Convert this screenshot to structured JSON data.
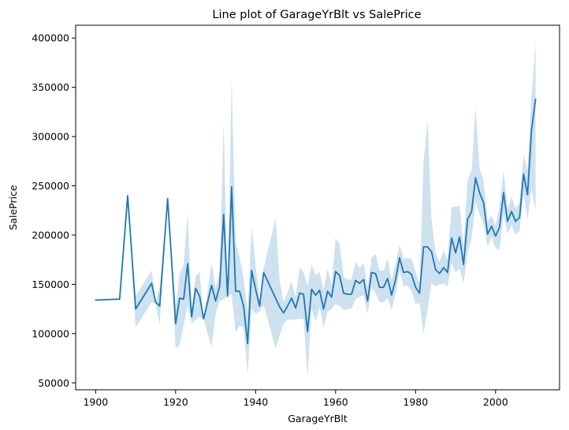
{
  "chart_data": {
    "type": "line",
    "title": "Line plot of GarageYrBlt vs SalePrice",
    "xlabel": "GarageYrBlt",
    "ylabel": "SalePrice",
    "xlim": [
      1895,
      2016
    ],
    "ylim": [
      43000,
      413000
    ],
    "xticks": [
      1900,
      1920,
      1940,
      1960,
      1980,
      2000
    ],
    "yticks": [
      50000,
      100000,
      150000,
      200000,
      250000,
      300000,
      350000,
      400000
    ],
    "grid": false,
    "legend": "none",
    "line_color": "#1f77b4",
    "band_color": "#1f77b4",
    "band_opacity": 0.22,
    "x": [
      1900,
      1906,
      1908,
      1910,
      1914,
      1915,
      1916,
      1918,
      1920,
      1921,
      1922,
      1923,
      1924,
      1925,
      1926,
      1927,
      1929,
      1930,
      1931,
      1932,
      1933,
      1934,
      1935,
      1936,
      1937,
      1938,
      1939,
      1940,
      1941,
      1942,
      1945,
      1946,
      1947,
      1948,
      1949,
      1950,
      1951,
      1952,
      1953,
      1954,
      1955,
      1956,
      1957,
      1958,
      1959,
      1960,
      1961,
      1962,
      1963,
      1964,
      1965,
      1966,
      1967,
      1968,
      1969,
      1970,
      1971,
      1972,
      1973,
      1974,
      1975,
      1976,
      1977,
      1978,
      1979,
      1980,
      1981,
      1982,
      1983,
      1984,
      1985,
      1986,
      1987,
      1988,
      1989,
      1990,
      1991,
      1992,
      1993,
      1994,
      1995,
      1996,
      1997,
      1998,
      1999,
      2000,
      2001,
      2002,
      2003,
      2004,
      2005,
      2006,
      2007,
      2008,
      2009,
      2010
    ],
    "y": [
      134000,
      135000,
      240000,
      125000,
      151000,
      132000,
      128000,
      237000,
      110000,
      136000,
      135000,
      171000,
      117000,
      146000,
      138000,
      115000,
      149000,
      133000,
      148000,
      221000,
      138000,
      249000,
      143000,
      143000,
      128000,
      90000,
      164000,
      145000,
      128000,
      162000,
      136000,
      127000,
      121000,
      128000,
      136000,
      126000,
      141000,
      140000,
      102000,
      145000,
      139000,
      144000,
      125000,
      143000,
      137000,
      163000,
      159000,
      141000,
      140000,
      140000,
      154000,
      151000,
      155000,
      133000,
      162000,
      161000,
      147000,
      147000,
      156000,
      139000,
      155000,
      177000,
      162000,
      163000,
      160000,
      147000,
      141000,
      188000,
      188000,
      183000,
      165000,
      161000,
      167000,
      162000,
      197000,
      182000,
      198000,
      170000,
      216000,
      224000,
      258000,
      243000,
      233000,
      201000,
      209000,
      199000,
      208000,
      243000,
      214000,
      224000,
      214000,
      218000,
      262000,
      241000,
      307000,
      338000
    ],
    "y_lower": [
      134000,
      135000,
      240000,
      106000,
      132000,
      130000,
      109000,
      237000,
      85000,
      88000,
      109000,
      129000,
      110000,
      114000,
      117000,
      114000,
      86000,
      120000,
      133000,
      135000,
      138000,
      140000,
      101000,
      108000,
      106000,
      58000,
      126000,
      120000,
      123000,
      129000,
      85000,
      98000,
      110000,
      114000,
      114000,
      114000,
      115000,
      115000,
      56000,
      125000,
      112000,
      127000,
      106000,
      122000,
      125000,
      130000,
      128000,
      124000,
      125000,
      125000,
      135000,
      137000,
      139000,
      120000,
      147000,
      141000,
      132000,
      132000,
      136000,
      124000,
      140000,
      164000,
      148000,
      149000,
      143000,
      130000,
      131000,
      100000,
      124000,
      151000,
      148000,
      150000,
      151000,
      148000,
      172000,
      162000,
      166000,
      151000,
      183000,
      196000,
      234000,
      221000,
      211000,
      188000,
      198000,
      187000,
      185000,
      221000,
      201000,
      210000,
      200000,
      204000,
      242000,
      216000,
      247000,
      225000
    ],
    "y_upper": [
      134000,
      135000,
      240000,
      138000,
      164000,
      133000,
      147000,
      237000,
      127000,
      160000,
      170000,
      223000,
      125000,
      158000,
      163000,
      115000,
      172000,
      146000,
      162000,
      315000,
      138000,
      360000,
      192000,
      178000,
      156000,
      122000,
      209000,
      170000,
      134000,
      166000,
      217000,
      154000,
      132000,
      142000,
      153000,
      137000,
      167000,
      163000,
      148000,
      170000,
      159000,
      163000,
      144000,
      166000,
      149000,
      197000,
      191000,
      158000,
      155000,
      155000,
      173000,
      166000,
      172000,
      147000,
      177000,
      181000,
      164000,
      164000,
      176000,
      154000,
      171000,
      190000,
      176000,
      177000,
      176000,
      163000,
      151000,
      275000,
      316000,
      216000,
      182000,
      173000,
      184000,
      176000,
      228000,
      229000,
      230000,
      188000,
      256000,
      265000,
      331000,
      267000,
      256000,
      214000,
      220000,
      210000,
      230000,
      266000,
      227000,
      239000,
      227000,
      233000,
      282000,
      265000,
      341000,
      396000
    ]
  }
}
